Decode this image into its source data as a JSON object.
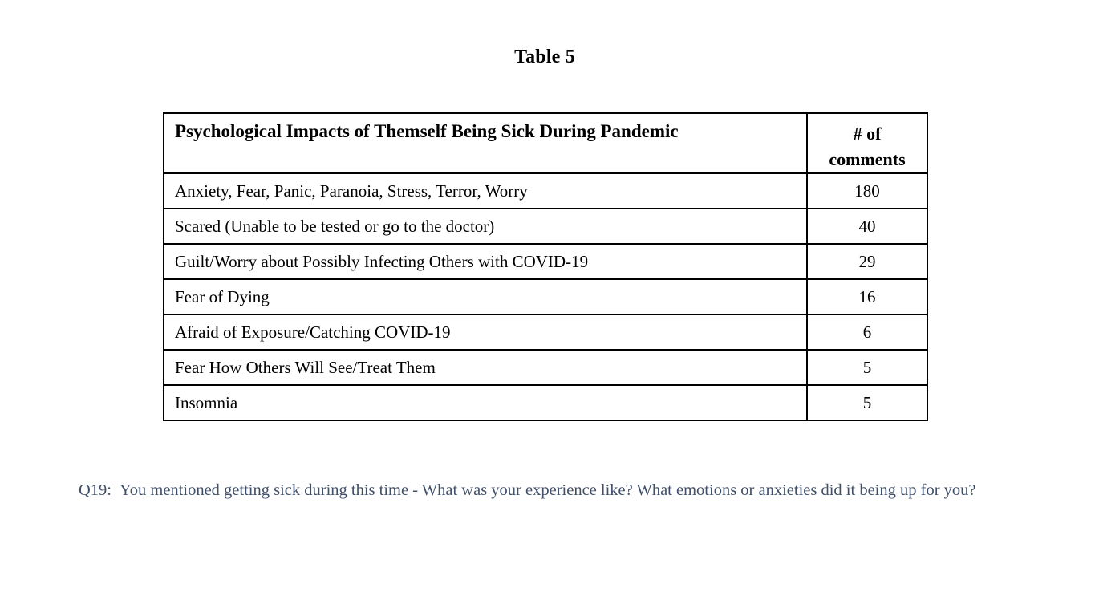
{
  "page": {
    "title": "Table 5"
  },
  "table": {
    "header": {
      "topic": "Psychological Impacts of Themself Being Sick During Pandemic",
      "count_line1": "# of",
      "count_line2": "comments"
    },
    "rows": [
      {
        "label": "Anxiety, Fear, Panic, Paranoia, Stress, Terror, Worry",
        "count": "180"
      },
      {
        "label": "Scared (Unable to be tested or go to the doctor)",
        "count": "40"
      },
      {
        "label": "Guilt/Worry about Possibly Infecting Others with COVID-19",
        "count": "29"
      },
      {
        "label": "Fear of Dying",
        "count": "16"
      },
      {
        "label": "Afraid of Exposure/Catching COVID-19",
        "count": "6"
      },
      {
        "label": "Fear How Others Will See/Treat Them",
        "count": "5"
      },
      {
        "label": "Insomnia",
        "count": "5"
      }
    ]
  },
  "footnote": {
    "label": "Q19:",
    "question": "You mentioned getting sick during this time - What was your experience like? What emotions or anxieties did it being up for you?"
  },
  "colors": {
    "background": "#ffffff",
    "table_text": "#000000",
    "table_border": "#000000",
    "footnote_text": "#40506a"
  },
  "chart_data": {
    "type": "table",
    "title": "Table 5",
    "columns": [
      "Psychological Impacts of Themself Being Sick During Pandemic",
      "# of comments"
    ],
    "categories": [
      "Anxiety, Fear, Panic, Paranoia, Stress, Terror, Worry",
      "Scared (Unable to be tested or go to the doctor)",
      "Guilt/Worry about Possibly Infecting Others with COVID-19",
      "Fear of Dying",
      "Afraid of Exposure/Catching COVID-19",
      "Fear How Others Will See/Treat Them",
      "Insomnia"
    ],
    "values": [
      180,
      40,
      29,
      16,
      6,
      5,
      5
    ]
  }
}
